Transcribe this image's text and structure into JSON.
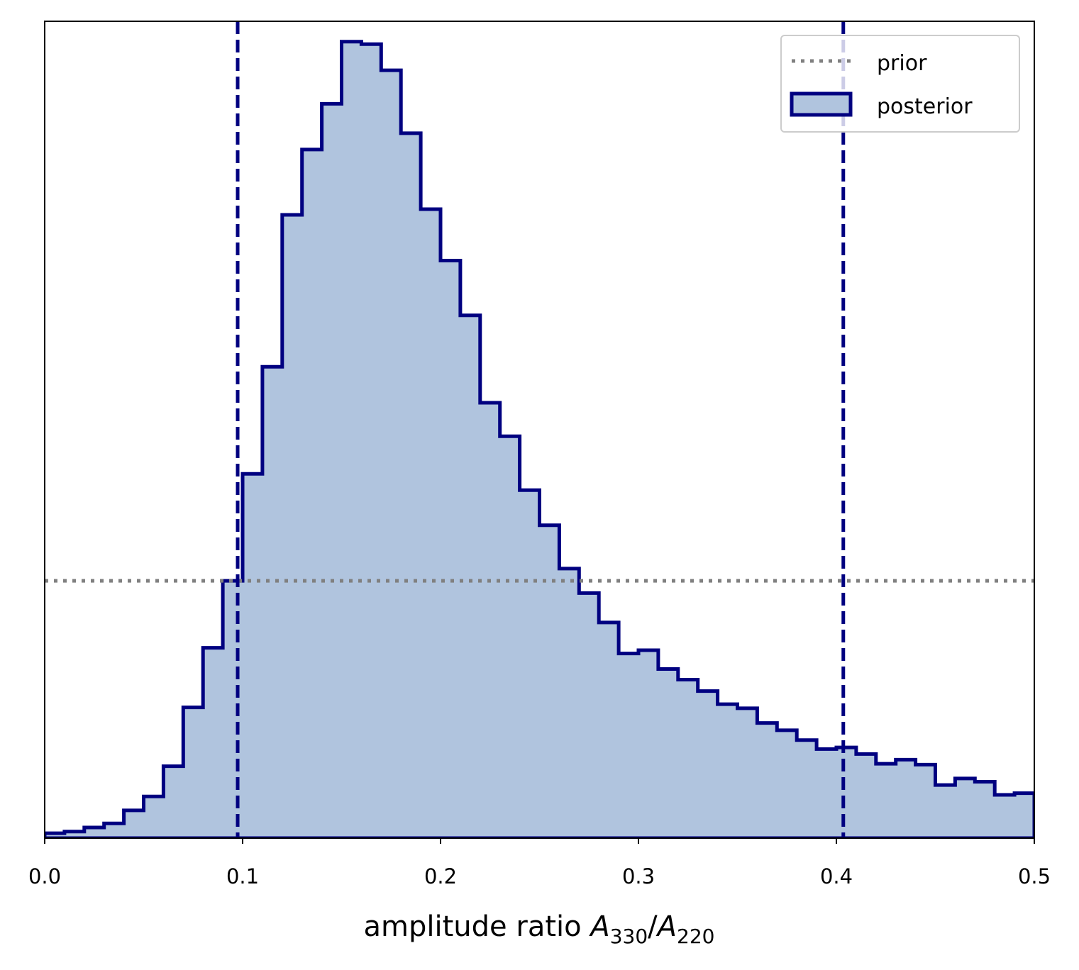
{
  "chart_data": {
    "type": "histogram",
    "title": "",
    "xlabel": {
      "prefix": "amplitude ratio ",
      "num_var": "A",
      "num_sub": "330",
      "slash": "/",
      "den_var": "A",
      "den_sub": "220"
    },
    "ylabel": "",
    "xlim": [
      0.0,
      0.5
    ],
    "ylim": [
      0,
      1.0
    ],
    "y_ticks_shown": false,
    "x_ticks": [
      {
        "value": 0.0,
        "label": "0.0"
      },
      {
        "value": 0.1,
        "label": "0.1"
      },
      {
        "value": 0.2,
        "label": "0.2"
      },
      {
        "value": 0.3,
        "label": "0.3"
      },
      {
        "value": 0.4,
        "label": "0.4"
      },
      {
        "value": 0.5,
        "label": "0.5"
      }
    ],
    "bin_edges": [
      0.0,
      0.01,
      0.02,
      0.03,
      0.04,
      0.05,
      0.06,
      0.07,
      0.08,
      0.09,
      0.1,
      0.11,
      0.12,
      0.13,
      0.14,
      0.15,
      0.16,
      0.17,
      0.18,
      0.19,
      0.2,
      0.21,
      0.22,
      0.23,
      0.24,
      0.25,
      0.26,
      0.27,
      0.28,
      0.29,
      0.3,
      0.31,
      0.32,
      0.33,
      0.34,
      0.35,
      0.36,
      0.37,
      0.38,
      0.39,
      0.4,
      0.41,
      0.42,
      0.43,
      0.44,
      0.45,
      0.46,
      0.47,
      0.48,
      0.49,
      0.5
    ],
    "posterior_heights": [
      0.006,
      0.008,
      0.013,
      0.018,
      0.034,
      0.051,
      0.088,
      0.16,
      0.233,
      0.315,
      0.446,
      0.577,
      0.763,
      0.843,
      0.899,
      0.975,
      0.972,
      0.94,
      0.863,
      0.77,
      0.707,
      0.64,
      0.533,
      0.492,
      0.426,
      0.383,
      0.33,
      0.3,
      0.264,
      0.226,
      0.23,
      0.207,
      0.194,
      0.18,
      0.164,
      0.159,
      0.141,
      0.132,
      0.12,
      0.109,
      0.111,
      0.103,
      0.091,
      0.096,
      0.09,
      0.065,
      0.073,
      0.069,
      0.053,
      0.055
    ],
    "prior_level": 0.315,
    "credible_interval": [
      0.0975,
      0.4035
    ],
    "series": [
      {
        "name": "prior",
        "style": "dotted",
        "color": "#808080"
      },
      {
        "name": "posterior",
        "style": "step-filled",
        "edge_color": "#000080",
        "fill_color": "#b0c4de"
      }
    ],
    "interval_line_color": "#000080",
    "legend_position": "upper right",
    "grid": false
  }
}
